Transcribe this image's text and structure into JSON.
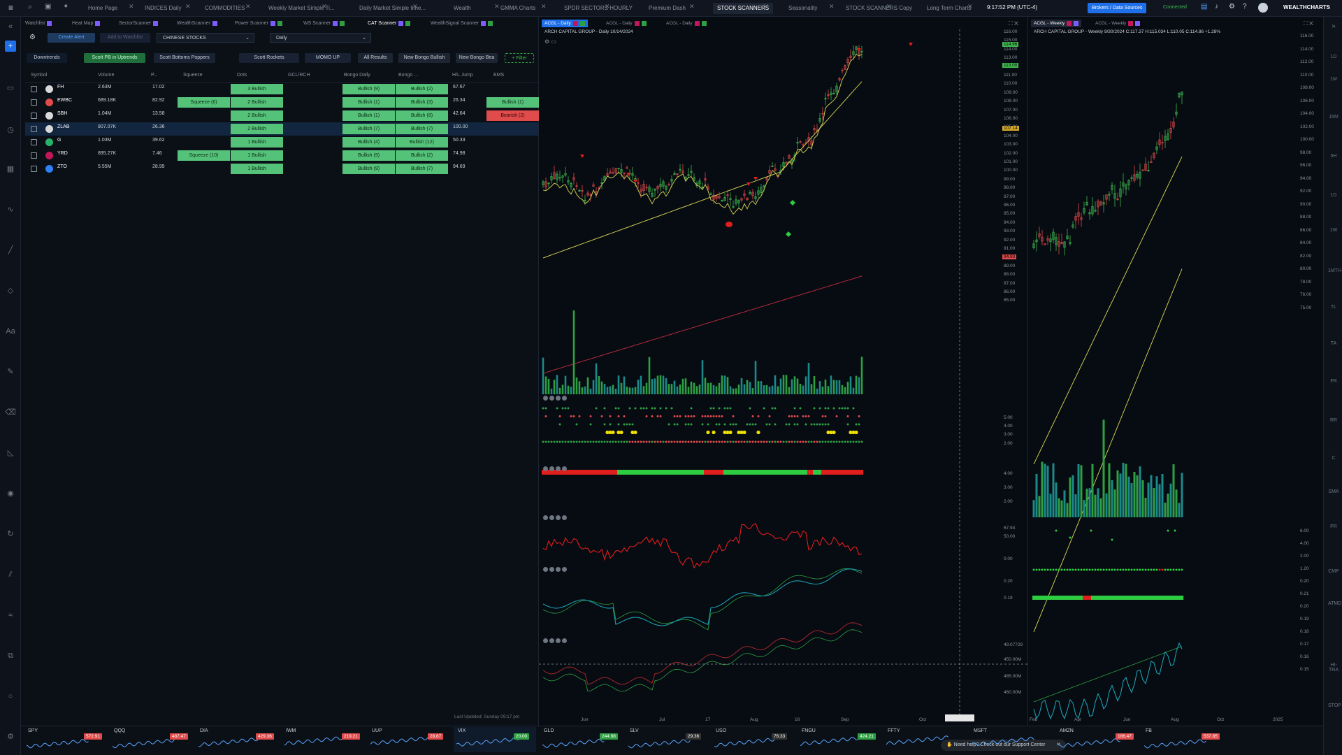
{
  "topbar": {
    "tabs": [
      "Home Page",
      "INDICES Daily",
      "COMMODITIES",
      "Weekly Market Simple Ti...",
      "Daily Market Simple time...",
      "Wealth",
      "GMMA Charts",
      "SPDR SECTORS HOURLY",
      "Premium Dash",
      "STOCK SCANNERS",
      "Seasonality",
      "STOCK SCANNERS Copy",
      "Long Term Charts"
    ],
    "active_tab": "STOCK SCANNERS",
    "clock": "9:17:52 PM (UTC-4)",
    "brokers_label": "Brokers / Data Sources",
    "connected": "Connected",
    "brand": "WEALTHCHARTS"
  },
  "subtabs": [
    "Watchlist",
    "Heat Map",
    "SectorScanner",
    "WealthScanner",
    "Power Scanner",
    "WS Scanner",
    "CAT Scanner",
    "WealthSignal Scanner"
  ],
  "scanner": {
    "create_alert": "Create Alert",
    "add_watchlist": "Add to Watchlist",
    "list_select": "CHINESE STOCKS",
    "interval_select": "Daily",
    "filters": [
      "Downtrends",
      "Scott PB in Uptrends",
      "Scott Bottoms Poppers",
      "Scott Rockets",
      "MOMO UP",
      "All Results",
      "New Bongo Bullish",
      "New Bongo Bea",
      "+ Filter"
    ],
    "columns": [
      "Symbol",
      "Volume",
      "P...",
      "Squeeze",
      "Dots",
      "GCL/RCH",
      "Bongo Daily",
      "Bongo ...",
      "H/L Jump",
      "EMS"
    ],
    "rows": [
      {
        "sym": "FH",
        "vol": "2.63M",
        "p": "17.02",
        "sq": "",
        "dots": "3 Bullish",
        "bd": "Bullish (9)",
        "b2": "Bullish (2)",
        "hl": "67.67",
        "ems": "",
        "icon": "#d9d9d9"
      },
      {
        "sym": "EWBC",
        "vol": "689.18K",
        "p": "82.92",
        "sq": "Squeeze (6)",
        "dots": "2 Bullish",
        "bd": "Bullish (1)",
        "b2": "Bullish (3)",
        "hl": "26.34",
        "ems": "Bullish (1)",
        "icon": "#e04b4b"
      },
      {
        "sym": "SBH",
        "vol": "1.04M",
        "p": "13.58",
        "sq": "",
        "dots": "2 Bullish",
        "bd": "Bullish (1)",
        "b2": "Bullish (8)",
        "hl": "42.64",
        "ems": "Bearish (2)",
        "icon": "#d9d9d9"
      },
      {
        "sym": "ZLAB",
        "vol": "807.07K",
        "p": "26.36",
        "sq": "",
        "dots": "2 Bullish",
        "bd": "Bullish (7)",
        "b2": "Bullish (7)",
        "hl": "100.00",
        "ems": "",
        "icon": "#d9d9d9"
      },
      {
        "sym": "G",
        "vol": "1.03M",
        "p": "39.62",
        "sq": "",
        "dots": "1 Bullish",
        "bd": "Bullish (4)",
        "b2": "Bullish (12)",
        "hl": "50.33",
        "ems": "",
        "icon": "#27b36b"
      },
      {
        "sym": "YRD",
        "vol": "895.27K",
        "p": "7.46",
        "sq": "Squeeze (10)",
        "dots": "1 Bullish",
        "bd": "Bullish (9)",
        "b2": "Bullish (2)",
        "hl": "74.98",
        "ems": "",
        "icon": "#c2185b"
      },
      {
        "sym": "ZTO",
        "vol": "5.55M",
        "p": "28.99",
        "sq": "",
        "dots": "1 Bullish",
        "bd": "Bullish (9)",
        "b2": "Bullish (7)",
        "hl": "94.69",
        "ems": "",
        "icon": "#2f81f7"
      }
    ],
    "last_updated": "Last Updated: Sunday 09:17 pm"
  },
  "chart_daily": {
    "tab1": "ACGL - Daily",
    "tab2": "ACGL - Daily",
    "tab3": "ACGL - Daily",
    "title": "ARCH CAPITAL GROUP - Daily 10/14/2024",
    "price_ticks": [
      "116.00",
      "115.00",
      "114.00",
      "113.00",
      "112.00",
      "111.00",
      "110.00",
      "109.00",
      "108.00",
      "107.00",
      "106.00",
      "105.00",
      "104.00",
      "103.00",
      "102.00",
      "101.00",
      "100.00",
      "99.00",
      "98.00",
      "97.00",
      "96.00",
      "95.00",
      "94.00",
      "93.00",
      "92.00",
      "91.00",
      "90.00",
      "89.00",
      "88.00",
      "87.00",
      "86.00",
      "85.00"
    ],
    "highlight_prices": [
      "114.96",
      "113.00",
      "107.14",
      "94.93"
    ],
    "x_labels": [
      "Jun",
      "Jul",
      "17",
      "Aug",
      "16",
      "Sep",
      "Oct"
    ],
    "ind_ticks": [
      "5.00",
      "4.00",
      "3.00",
      "2.00"
    ],
    "ind2_ticks": [
      "4.00",
      "3.00",
      "2.00"
    ],
    "ind3_ticks": [
      "67.94",
      "50.00",
      "0.00"
    ],
    "ind4_ticks": [
      "0.20",
      "0.19"
    ],
    "ind5_ticks": [
      "49.07729",
      "450.00M",
      "485.00M",
      "460.00M"
    ]
  },
  "chart_weekly": {
    "tab1": "ACGL - Weekly",
    "tab2": "ACGL - Weekly",
    "title": "ARCH CAPITAL GROUP - Weekly 9/30/2024 C:117.37 H:115.034 L:110.05 C:114.86 +1.28%",
    "price_ticks": [
      "116.00",
      "114.00",
      "112.00",
      "110.00",
      "108.00",
      "106.00",
      "104.00",
      "102.00",
      "100.00",
      "98.00",
      "96.00",
      "94.00",
      "92.00",
      "90.00",
      "88.00",
      "86.00",
      "84.00",
      "82.00",
      "80.00",
      "78.00",
      "76.00",
      "75.00"
    ],
    "x_labels": [
      "Feb",
      "Apr",
      "Jun",
      "Aug",
      "Oct",
      "2025"
    ],
    "ind_ticks": [
      "6.00",
      "4.00",
      "2.00",
      "1.20",
      "0.20",
      "0.21",
      "0.20",
      "0.19",
      "0.18",
      "0.17",
      "0.16",
      "0.15"
    ]
  },
  "tickers": [
    {
      "sym": "SPY",
      "price": "572.91",
      "color": "#e04b4b"
    },
    {
      "sym": "QQQ",
      "price": "487.47",
      "color": "#e04b4b"
    },
    {
      "sym": "DIA",
      "price": "429.36",
      "color": "#e04b4b"
    },
    {
      "sym": "IWM",
      "price": "219.21",
      "color": "#e04b4b"
    },
    {
      "sym": "UUP",
      "price": "28.67",
      "color": "#e04b4b"
    },
    {
      "sym": "VIX",
      "price": "20.00",
      "color": "#2ea043"
    },
    {
      "sym": "GLD",
      "price": "244.98",
      "color": "#2ea043"
    },
    {
      "sym": "SLV",
      "price": "29.36",
      "color": "#333"
    },
    {
      "sym": "USO",
      "price": "76.33",
      "color": "#333"
    },
    {
      "sym": "FNGU",
      "price": "424.21",
      "color": "#2ea043"
    },
    {
      "sym": "FFTY",
      "price": "",
      "color": "#333"
    },
    {
      "sym": "MSFT",
      "price": "",
      "color": "#333"
    },
    {
      "sym": "AMZN",
      "price": "186.47",
      "color": "#e04b4b"
    },
    {
      "sym": "FB",
      "price": "537.85",
      "color": "#e04b4b"
    }
  ],
  "support": "Need help? Check out our Support Center"
}
